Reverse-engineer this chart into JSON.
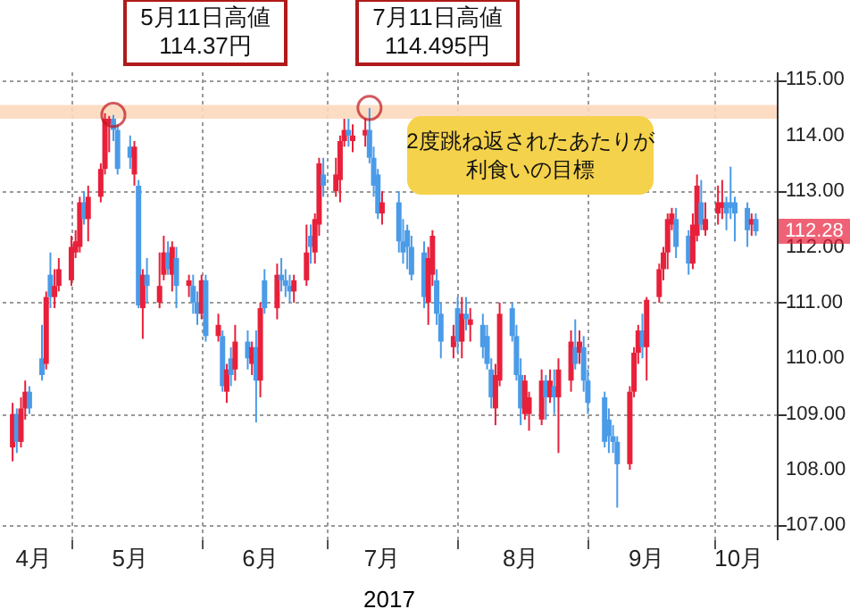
{
  "chart_data": {
    "type": "candlestick",
    "xlabel": "2017",
    "x": [
      "2017-04-17",
      "2017-04-18",
      "2017-04-19",
      "2017-04-20",
      "2017-04-21",
      "2017-04-24",
      "2017-04-25",
      "2017-04-26",
      "2017-04-27",
      "2017-04-28",
      "2017-05-01",
      "2017-05-02",
      "2017-05-03",
      "2017-05-04",
      "2017-05-05",
      "2017-05-08",
      "2017-05-09",
      "2017-05-10",
      "2017-05-11",
      "2017-05-12",
      "2017-05-15",
      "2017-05-16",
      "2017-05-17",
      "2017-05-18",
      "2017-05-19",
      "2017-05-22",
      "2017-05-23",
      "2017-05-24",
      "2017-05-25",
      "2017-05-26",
      "2017-05-29",
      "2017-05-30",
      "2017-05-31",
      "2017-06-01",
      "2017-06-02",
      "2017-06-05",
      "2017-06-06",
      "2017-06-07",
      "2017-06-08",
      "2017-06-09",
      "2017-06-12",
      "2017-06-13",
      "2017-06-14",
      "2017-06-15",
      "2017-06-16",
      "2017-06-19",
      "2017-06-20",
      "2017-06-21",
      "2017-06-22",
      "2017-06-23",
      "2017-06-26",
      "2017-06-27",
      "2017-06-28",
      "2017-06-29",
      "2017-06-30",
      "2017-07-03",
      "2017-07-04",
      "2017-07-05",
      "2017-07-06",
      "2017-07-07",
      "2017-07-10",
      "2017-07-11",
      "2017-07-12",
      "2017-07-13",
      "2017-07-14",
      "2017-07-18",
      "2017-07-19",
      "2017-07-20",
      "2017-07-21",
      "2017-07-24",
      "2017-07-25",
      "2017-07-26",
      "2017-07-27",
      "2017-07-28",
      "2017-07-31",
      "2017-08-01",
      "2017-08-02",
      "2017-08-03",
      "2017-08-04",
      "2017-08-07",
      "2017-08-08",
      "2017-08-09",
      "2017-08-10",
      "2017-08-11",
      "2017-08-14",
      "2017-08-15",
      "2017-08-16",
      "2017-08-17",
      "2017-08-18",
      "2017-08-21",
      "2017-08-22",
      "2017-08-23",
      "2017-08-24",
      "2017-08-25",
      "2017-08-28",
      "2017-08-29",
      "2017-08-30",
      "2017-08-31",
      "2017-09-01",
      "2017-09-05",
      "2017-09-06",
      "2017-09-07",
      "2017-09-08",
      "2017-09-11",
      "2017-09-12",
      "2017-09-13",
      "2017-09-14",
      "2017-09-15",
      "2017-09-18",
      "2017-09-19",
      "2017-09-20",
      "2017-09-21",
      "2017-09-22",
      "2017-09-25",
      "2017-09-26",
      "2017-09-27",
      "2017-09-28",
      "2017-09-29",
      "2017-10-02",
      "2017-10-03",
      "2017-10-04",
      "2017-10-05",
      "2017-10-06",
      "2017-10-09",
      "2017-10-10",
      "2017-10-11"
    ],
    "ohlc": [
      [
        108.4,
        109.2,
        108.15,
        109.0
      ],
      [
        109.0,
        109.1,
        108.3,
        108.5
      ],
      [
        108.5,
        109.3,
        108.4,
        109.1
      ],
      [
        109.1,
        109.6,
        108.9,
        109.4
      ],
      [
        109.4,
        109.5,
        109.0,
        109.1
      ],
      [
        110.0,
        110.6,
        109.6,
        109.7
      ],
      [
        109.9,
        111.2,
        109.8,
        111.1
      ],
      [
        111.5,
        111.9,
        110.9,
        111.1
      ],
      [
        111.1,
        111.6,
        110.9,
        111.3
      ],
      [
        111.3,
        111.8,
        111.2,
        111.6
      ],
      [
        111.4,
        112.2,
        111.3,
        112.0
      ],
      [
        111.9,
        112.3,
        111.8,
        112.1
      ],
      [
        112.0,
        112.9,
        111.9,
        112.8
      ],
      [
        112.8,
        113.0,
        112.4,
        112.5
      ],
      [
        112.5,
        113.1,
        112.1,
        112.9
      ],
      [
        112.9,
        113.5,
        112.8,
        113.4
      ],
      [
        113.4,
        114.4,
        113.3,
        114.3
      ],
      [
        114.2,
        114.35,
        113.7,
        114.3
      ],
      [
        114.3,
        114.37,
        113.9,
        114.1
      ],
      [
        114.1,
        114.2,
        113.3,
        113.4
      ],
      [
        113.8,
        114.0,
        113.4,
        113.6
      ],
      [
        113.3,
        113.9,
        113.1,
        113.8
      ],
      [
        113.1,
        113.2,
        110.9,
        110.95
      ],
      [
        110.9,
        111.6,
        110.35,
        111.5
      ],
      [
        111.5,
        111.8,
        111.0,
        111.3
      ],
      [
        111.0,
        111.9,
        110.9,
        111.3
      ],
      [
        111.5,
        112.2,
        111.4,
        111.9
      ],
      [
        111.9,
        112.1,
        111.5,
        111.6
      ],
      [
        111.5,
        112.1,
        111.2,
        112.0
      ],
      [
        111.8,
        112.0,
        110.9,
        111.3
      ],
      [
        111.3,
        111.5,
        111.1,
        111.4
      ],
      [
        111.3,
        111.5,
        110.8,
        111.0
      ],
      [
        111.0,
        111.2,
        110.6,
        110.8
      ],
      [
        110.8,
        111.5,
        110.7,
        111.4
      ],
      [
        111.4,
        111.5,
        110.3,
        110.4
      ],
      [
        110.4,
        110.8,
        110.3,
        110.6
      ],
      [
        110.4,
        110.5,
        109.4,
        109.5
      ],
      [
        109.4,
        109.9,
        109.2,
        109.8
      ],
      [
        110.0,
        110.2,
        109.5,
        109.7
      ],
      [
        109.8,
        110.6,
        109.6,
        110.3
      ],
      [
        110.3,
        110.5,
        109.8,
        110.0
      ],
      [
        109.9,
        110.3,
        109.7,
        110.2
      ],
      [
        110.2,
        110.5,
        108.85,
        109.6
      ],
      [
        109.6,
        111.0,
        109.3,
        110.9
      ],
      [
        111.4,
        111.6,
        110.8,
        110.9
      ],
      [
        110.9,
        111.7,
        110.7,
        111.5
      ],
      [
        111.5,
        111.8,
        111.2,
        111.4
      ],
      [
        111.4,
        111.6,
        111.1,
        111.3
      ],
      [
        111.3,
        111.5,
        111.0,
        111.2
      ],
      [
        111.2,
        111.5,
        111.0,
        111.4
      ],
      [
        111.4,
        112.4,
        111.3,
        111.9
      ],
      [
        112.2,
        112.4,
        111.7,
        112.0
      ],
      [
        111.9,
        112.6,
        111.7,
        112.5
      ],
      [
        112.4,
        113.6,
        112.2,
        113.5
      ],
      [
        113.3,
        113.6,
        112.9,
        113.1
      ],
      [
        113.0,
        113.6,
        112.9,
        113.3
      ],
      [
        113.2,
        114.0,
        112.8,
        113.9
      ],
      [
        113.9,
        114.3,
        113.8,
        114.1
      ],
      [
        114.1,
        114.3,
        113.8,
        114.0
      ],
      [
        113.9,
        114.2,
        113.7,
        114.0
      ],
      [
        114.0,
        114.3,
        113.8,
        114.1
      ],
      [
        114.1,
        114.495,
        113.5,
        113.6
      ],
      [
        113.6,
        113.8,
        112.9,
        113.1
      ],
      [
        113.3,
        113.4,
        112.5,
        112.6
      ],
      [
        112.6,
        113.0,
        112.4,
        112.8
      ],
      [
        112.8,
        113.0,
        111.9,
        112.1
      ],
      [
        112.1,
        112.5,
        111.7,
        111.9
      ],
      [
        112.3,
        112.4,
        111.6,
        112.0
      ],
      [
        112.0,
        112.2,
        111.4,
        111.5
      ],
      [
        111.9,
        112.1,
        110.9,
        111.1
      ],
      [
        111.0,
        112.0,
        110.6,
        111.8
      ],
      [
        111.5,
        112.3,
        111.3,
        112.2
      ],
      [
        111.4,
        111.6,
        110.6,
        110.8
      ],
      [
        110.8,
        111.0,
        110.0,
        110.3
      ],
      [
        110.2,
        110.6,
        110.0,
        110.4
      ],
      [
        110.9,
        111.1,
        110.1,
        110.3
      ],
      [
        110.3,
        111.1,
        110.0,
        110.8
      ],
      [
        110.8,
        111.1,
        110.5,
        110.7
      ],
      [
        110.6,
        110.9,
        110.3,
        110.7
      ],
      [
        110.6,
        110.8,
        110.0,
        110.2
      ],
      [
        110.4,
        110.6,
        109.8,
        109.9
      ],
      [
        109.8,
        110.0,
        109.1,
        109.3
      ],
      [
        109.1,
        109.9,
        108.8,
        109.7
      ],
      [
        109.6,
        111.0,
        109.5,
        110.8
      ],
      [
        110.9,
        111.0,
        110.3,
        110.4
      ],
      [
        110.4,
        110.6,
        109.6,
        109.7
      ],
      [
        109.7,
        110.0,
        108.8,
        109.1
      ],
      [
        109.0,
        109.7,
        108.9,
        109.6
      ],
      [
        109.0,
        109.4,
        108.7,
        109.3
      ],
      [
        108.9,
        109.8,
        108.8,
        109.6
      ],
      [
        109.6,
        109.7,
        108.9,
        109.3
      ],
      [
        109.3,
        109.8,
        109.2,
        109.6
      ],
      [
        109.5,
        109.8,
        109.0,
        109.3
      ],
      [
        109.3,
        110.0,
        108.3,
        109.8
      ],
      [
        109.6,
        110.5,
        109.4,
        110.3
      ],
      [
        110.2,
        110.7,
        109.8,
        109.9
      ],
      [
        110.1,
        110.5,
        109.9,
        110.3
      ],
      [
        110.2,
        110.4,
        109.4,
        109.6
      ],
      [
        109.6,
        109.8,
        109.0,
        109.2
      ],
      [
        109.3,
        109.4,
        108.4,
        108.5
      ],
      [
        108.9,
        109.1,
        108.3,
        108.6
      ],
      [
        108.6,
        108.8,
        108.3,
        108.5
      ],
      [
        108.5,
        108.6,
        107.32,
        108.1
      ],
      [
        108.1,
        109.5,
        108.0,
        109.4
      ],
      [
        109.4,
        110.2,
        109.3,
        110.1
      ],
      [
        110.1,
        110.6,
        109.9,
        110.5
      ],
      [
        110.5,
        110.8,
        110.0,
        110.2
      ],
      [
        110.2,
        111.1,
        109.6,
        111.05
      ],
      [
        111.1,
        111.7,
        111.0,
        111.6
      ],
      [
        111.6,
        112.0,
        111.4,
        111.9
      ],
      [
        111.9,
        112.6,
        111.6,
        112.5
      ],
      [
        112.4,
        112.7,
        112.3,
        112.6
      ],
      [
        112.5,
        112.7,
        111.8,
        112.0
      ],
      [
        112.2,
        112.3,
        111.5,
        111.7
      ],
      [
        111.7,
        112.6,
        111.6,
        112.4
      ],
      [
        112.2,
        113.3,
        112.1,
        113.1
      ],
      [
        112.8,
        113.2,
        112.3,
        112.4
      ],
      [
        112.3,
        112.8,
        112.2,
        112.5
      ],
      [
        112.6,
        113.1,
        112.4,
        112.8
      ],
      [
        112.7,
        113.2,
        112.5,
        112.8
      ],
      [
        112.8,
        112.9,
        112.3,
        112.6
      ],
      [
        112.8,
        113.44,
        112.5,
        112.7
      ],
      [
        112.8,
        112.9,
        112.1,
        112.6
      ],
      [
        112.7,
        112.8,
        112.0,
        112.3
      ],
      [
        112.4,
        112.6,
        112.2,
        112.5
      ],
      [
        112.5,
        112.6,
        112.2,
        112.28
      ]
    ],
    "colors": [
      "#e8203a",
      "#4a9be8",
      "#e8203a",
      "#e8203a",
      "#4a9be8",
      "#4a9be8",
      "#e8203a",
      "#4a9be8",
      "#e8203a",
      "#e8203a",
      "#e8203a",
      "#e8203a",
      "#e8203a",
      "#4a9be8",
      "#e8203a",
      "#e8203a",
      "#e8203a",
      "#e8203a",
      "#4a9be8",
      "#4a9be8",
      "#4a9be8",
      "#e8203a",
      "#4a9be8",
      "#e8203a",
      "#4a9be8",
      "#e8203a",
      "#e8203a",
      "#4a9be8",
      "#e8203a",
      "#4a9be8",
      "#e8203a",
      "#4a9be8",
      "#4a9be8",
      "#e8203a",
      "#4a9be8",
      "#e8203a",
      "#4a9be8",
      "#e8203a",
      "#4a9be8",
      "#e8203a",
      "#4a9be8",
      "#e8203a",
      "#4a9be8",
      "#e8203a",
      "#4a9be8",
      "#e8203a",
      "#4a9be8",
      "#4a9be8",
      "#4a9be8",
      "#e8203a",
      "#e8203a",
      "#4a9be8",
      "#e8203a",
      "#e8203a",
      "#4a9be8",
      "#e8203a",
      "#e8203a",
      "#e8203a",
      "#4a9be8",
      "#e8203a",
      "#e8203a",
      "#4a9be8",
      "#4a9be8",
      "#4a9be8",
      "#e8203a",
      "#4a9be8",
      "#4a9be8",
      "#4a9be8",
      "#4a9be8",
      "#4a9be8",
      "#e8203a",
      "#e8203a",
      "#4a9be8",
      "#4a9be8",
      "#e8203a",
      "#4a9be8",
      "#e8203a",
      "#4a9be8",
      "#e8203a",
      "#4a9be8",
      "#4a9be8",
      "#4a9be8",
      "#e8203a",
      "#e8203a",
      "#4a9be8",
      "#4a9be8",
      "#4a9be8",
      "#e8203a",
      "#e8203a",
      "#e8203a",
      "#4a9be8",
      "#e8203a",
      "#4a9be8",
      "#e8203a",
      "#e8203a",
      "#4a9be8",
      "#e8203a",
      "#4a9be8",
      "#4a9be8",
      "#4a9be8",
      "#4a9be8",
      "#4a9be8",
      "#4a9be8",
      "#e8203a",
      "#e8203a",
      "#e8203a",
      "#4a9be8",
      "#e8203a",
      "#e8203a",
      "#e8203a",
      "#e8203a",
      "#e8203a",
      "#4a9be8",
      "#4a9be8",
      "#e8203a",
      "#e8203a",
      "#4a9be8",
      "#e8203a",
      "#e8203a",
      "#e8203a",
      "#4a9be8",
      "#4a9be8",
      "#4a9be8",
      "#4a9be8",
      "#e8203a",
      "#4a9be8"
    ],
    "xlim": [
      "2017-04-14",
      "2017-10-16"
    ],
    "xticks": [
      {
        "value": "2017-04-22",
        "label": "4月"
      },
      {
        "value": "2017-05-01",
        "label": null
      },
      {
        "value": "2017-05-15",
        "label": "5月"
      },
      {
        "value": "2017-06-01",
        "label": null
      },
      {
        "value": "2017-06-15",
        "label": "6月"
      },
      {
        "value": "2017-07-01",
        "label": null
      },
      {
        "value": "2017-07-14",
        "label": "7月"
      },
      {
        "value": "2017-08-01",
        "label": null
      },
      {
        "value": "2017-08-16",
        "label": "8月"
      },
      {
        "value": "2017-09-01",
        "label": null
      },
      {
        "value": "2017-09-15",
        "label": "9月"
      },
      {
        "value": "2017-10-01",
        "label": null
      },
      {
        "value": "2017-10-07",
        "label": "10月"
      }
    ],
    "ylim": [
      106.75,
      115.15
    ],
    "yticks": [
      {
        "value": 107,
        "label": "107.00"
      },
      {
        "value": 108,
        "label": "108.00"
      },
      {
        "value": 109,
        "label": "109.00"
      },
      {
        "value": 110,
        "label": "110.00"
      },
      {
        "value": 111,
        "label": "111.00"
      },
      {
        "value": 112,
        "label": "112.00"
      },
      {
        "value": 113,
        "label": "113.00"
      },
      {
        "value": 114,
        "label": "114.00"
      },
      {
        "value": 115,
        "label": "115.00"
      }
    ],
    "grid": true,
    "bands": [
      {
        "axis": "y",
        "from": 114.3,
        "to": 114.55,
        "color": "#fcd9be"
      }
    ],
    "annotations": [
      {
        "text": "5月11日高値\n114.37円",
        "x": "2017-05-11",
        "y": 114.37
      },
      {
        "text": "7月11日高値\n114.495円",
        "x": "2017-07-11",
        "y": 114.495
      },
      "2度跳ね返されたあたりが利食いの目標",
      {
        "text": "112.28",
        "y": 112.28
      }
    ]
  }
}
